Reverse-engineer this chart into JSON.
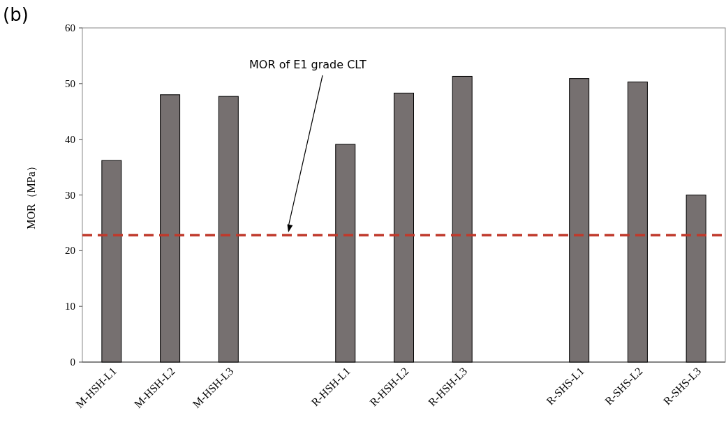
{
  "chart_data": {
    "type": "bar",
    "ylabel": "MOR（MPa）",
    "categories": [
      "M-HSH-L1",
      "M-HSH-L2",
      "M-HSH-L3",
      null,
      "R-HSH-L1",
      "R-HSH-L2",
      "R-HSH-L3",
      null,
      "R-SHS-L1",
      "R-SHS-L2",
      "R-SHS-L3"
    ],
    "values": [
      36.2,
      48.0,
      47.7,
      null,
      39.1,
      48.3,
      51.3,
      null,
      50.9,
      50.3,
      30.0
    ],
    "color": "#767070",
    "ylim": [
      0,
      60
    ],
    "yticks": [
      0,
      10,
      20,
      30,
      40,
      50,
      60
    ],
    "grid": false,
    "ref_lines": [
      {
        "axis": "y",
        "value": 22.8,
        "color": "#c0392b",
        "line_style": "dashed"
      }
    ],
    "annotations": [
      "(b)",
      "MOR of E1 grade CLT"
    ]
  }
}
